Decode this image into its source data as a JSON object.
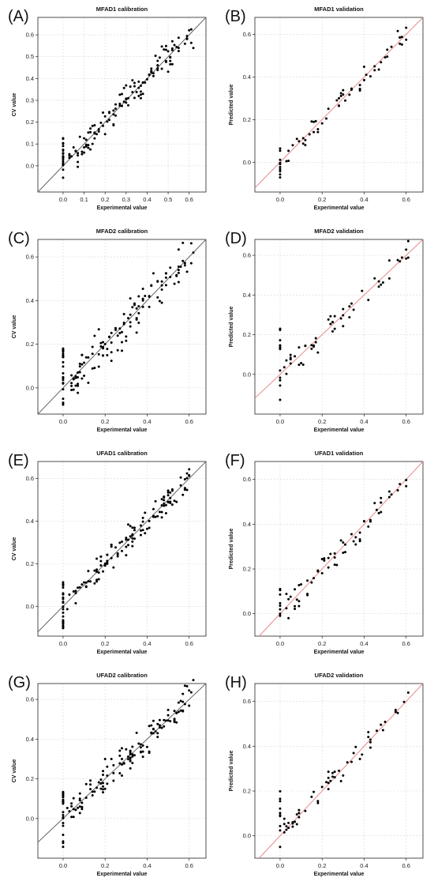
{
  "colors": {
    "calibration_line": "#666666",
    "validation_line": "#e88a8a",
    "points": "#000000",
    "grid": "#d8d8d8"
  },
  "charts": [
    {
      "panel": "(A)",
      "title": "MFAD1 calibration",
      "xlabel": "Experimental value",
      "ylabel": "CV value",
      "line": "calibration",
      "xlim": [
        -0.12,
        0.68
      ],
      "ylim": [
        -0.12,
        0.68
      ],
      "xticks": [
        "0.0",
        "0.1",
        "0.2",
        "0.3",
        "0.4",
        "0.5",
        "0.6"
      ],
      "yticks": [
        "0.0",
        "0.1",
        "0.2",
        "0.3",
        "0.4",
        "0.5",
        "0.6"
      ],
      "xtickvals": [
        0,
        0.1,
        0.2,
        0.3,
        0.4,
        0.5,
        0.6
      ],
      "ytickvals": [
        0,
        0.1,
        0.2,
        0.3,
        0.4,
        0.5,
        0.6
      ],
      "n": 150,
      "noise": 0.04,
      "zeros": 22,
      "zeroRange": [
        -0.06,
        0.13
      ]
    },
    {
      "panel": "(B)",
      "title": "MFAD1 validation",
      "xlabel": "Experimental value",
      "ylabel": "Predicted value",
      "line": "validation",
      "xlim": [
        -0.12,
        0.68
      ],
      "ylim": [
        -0.14,
        0.68
      ],
      "xticks": [
        "0.0",
        "0.2",
        "0.4",
        "0.6"
      ],
      "yticks": [
        "0.0",
        "0.2",
        "0.4",
        "0.6"
      ],
      "xtickvals": [
        0,
        0.2,
        0.4,
        0.6
      ],
      "ytickvals": [
        0,
        0.2,
        0.4,
        0.6
      ],
      "n": 65,
      "noise": 0.03,
      "zeros": 10,
      "zeroRange": [
        -0.1,
        0.07
      ]
    },
    {
      "panel": "(C)",
      "title": "MFAD2 calibration",
      "xlabel": "Experimental value",
      "ylabel": "CV value",
      "line": "calibration",
      "xlim": [
        -0.12,
        0.68
      ],
      "ylim": [
        -0.12,
        0.68
      ],
      "xticks": [
        "0.0",
        "0.2",
        "0.4",
        "0.6"
      ],
      "yticks": [
        "0.0",
        "0.2",
        "0.4",
        "0.6"
      ],
      "xtickvals": [
        0,
        0.2,
        0.4,
        0.6
      ],
      "ytickvals": [
        0,
        0.2,
        0.4,
        0.6
      ],
      "n": 150,
      "noise": 0.055,
      "zeros": 26,
      "zeroRange": [
        -0.08,
        0.18
      ]
    },
    {
      "panel": "(D)",
      "title": "MFAD2 validation",
      "xlabel": "Experimental value",
      "ylabel": "Predicted value",
      "line": "validation",
      "xlim": [
        -0.12,
        0.68
      ],
      "ylim": [
        -0.2,
        0.68
      ],
      "xticks": [
        "0.0",
        "0.2",
        "0.4",
        "0.6"
      ],
      "yticks": [
        "0.0",
        "0.2",
        "0.4",
        "0.6"
      ],
      "xtickvals": [
        0,
        0.2,
        0.4,
        0.6
      ],
      "ytickvals": [
        0,
        0.2,
        0.4,
        0.6
      ],
      "n": 65,
      "noise": 0.045,
      "zeros": 12,
      "zeroRange": [
        -0.15,
        0.25
      ]
    },
    {
      "panel": "(E)",
      "title": "UFAD1 calibration",
      "xlabel": "Experimental value",
      "ylabel": "CV value",
      "line": "calibration",
      "xlim": [
        -0.12,
        0.68
      ],
      "ylim": [
        -0.14,
        0.68
      ],
      "xticks": [
        "0.0",
        "0.2",
        "0.4",
        "0.6"
      ],
      "yticks": [
        "0.0",
        "0.2",
        "0.4",
        "0.6"
      ],
      "xtickvals": [
        0,
        0.2,
        0.4,
        0.6
      ],
      "ytickvals": [
        0,
        0.2,
        0.4,
        0.6
      ],
      "n": 150,
      "noise": 0.035,
      "zeros": 26,
      "zeroRange": [
        -0.11,
        0.12
      ]
    },
    {
      "panel": "(F)",
      "title": "UFAD1 validation",
      "xlabel": "Experimental value",
      "ylabel": "Predicted value",
      "line": "validation",
      "xlim": [
        -0.12,
        0.68
      ],
      "ylim": [
        -0.1,
        0.68
      ],
      "xticks": [
        "0.0",
        "0.2",
        "0.4",
        "0.6"
      ],
      "yticks": [
        "0.0",
        "0.2",
        "0.4",
        "0.6"
      ],
      "xtickvals": [
        0,
        0.2,
        0.4,
        0.6
      ],
      "ytickvals": [
        0,
        0.2,
        0.4,
        0.6
      ],
      "n": 70,
      "noise": 0.03,
      "zeros": 8,
      "zeroRange": [
        -0.03,
        0.12
      ]
    },
    {
      "panel": "(G)",
      "title": "UFAD2 calibration",
      "xlabel": "Experimental value",
      "ylabel": "CV value",
      "line": "calibration",
      "xlim": [
        -0.12,
        0.68
      ],
      "ylim": [
        -0.2,
        0.68
      ],
      "xticks": [
        "0.0",
        "0.2",
        "0.4",
        "0.6"
      ],
      "yticks": [
        "0.0",
        "0.2",
        "0.4",
        "0.6"
      ],
      "xtickvals": [
        0,
        0.2,
        0.4,
        0.6
      ],
      "ytickvals": [
        0,
        0.2,
        0.4,
        0.6
      ],
      "n": 150,
      "noise": 0.045,
      "zeros": 22,
      "zeroRange": [
        -0.16,
        0.15
      ]
    },
    {
      "panel": "(H)",
      "title": "UFAD2 validation",
      "xlabel": "Experimental value",
      "ylabel": "Predicted value",
      "line": "validation",
      "xlim": [
        -0.12,
        0.68
      ],
      "ylim": [
        -0.1,
        0.68
      ],
      "xticks": [
        "0.0",
        "0.2",
        "0.4",
        "0.6"
      ],
      "yticks": [
        "0.0",
        "0.2",
        "0.4",
        "0.6"
      ],
      "xtickvals": [
        0,
        0.2,
        0.4,
        0.6
      ],
      "ytickvals": [
        0,
        0.2,
        0.4,
        0.6
      ],
      "n": 65,
      "noise": 0.035,
      "zeros": 10,
      "zeroRange": [
        -0.07,
        0.2
      ]
    }
  ],
  "chart_data": [
    {
      "type": "scatter",
      "title": "MFAD1 calibration",
      "xlabel": "Experimental value",
      "ylabel": "CV value",
      "xlim": [
        -0.12,
        0.68
      ],
      "ylim": [
        -0.12,
        0.68
      ],
      "reference_line": "y=x"
    },
    {
      "type": "scatter",
      "title": "MFAD1 validation",
      "xlabel": "Experimental value",
      "ylabel": "Predicted value",
      "xlim": [
        -0.12,
        0.68
      ],
      "ylim": [
        -0.14,
        0.68
      ],
      "reference_line": "y=x"
    },
    {
      "type": "scatter",
      "title": "MFAD2 calibration",
      "xlabel": "Experimental value",
      "ylabel": "CV value",
      "xlim": [
        -0.12,
        0.68
      ],
      "ylim": [
        -0.12,
        0.68
      ],
      "reference_line": "y=x"
    },
    {
      "type": "scatter",
      "title": "MFAD2 validation",
      "xlabel": "Experimental value",
      "ylabel": "Predicted value",
      "xlim": [
        -0.12,
        0.68
      ],
      "ylim": [
        -0.2,
        0.68
      ],
      "reference_line": "y=x"
    },
    {
      "type": "scatter",
      "title": "UFAD1 calibration",
      "xlabel": "Experimental value",
      "ylabel": "CV value",
      "xlim": [
        -0.12,
        0.68
      ],
      "ylim": [
        -0.14,
        0.68
      ],
      "reference_line": "y=x"
    },
    {
      "type": "scatter",
      "title": "UFAD1 validation",
      "xlabel": "Experimental value",
      "ylabel": "Predicted value",
      "xlim": [
        -0.12,
        0.68
      ],
      "ylim": [
        -0.1,
        0.68
      ],
      "reference_line": "y=x"
    },
    {
      "type": "scatter",
      "title": "UFAD2 calibration",
      "xlabel": "Experimental value",
      "ylabel": "CV value",
      "xlim": [
        -0.12,
        0.68
      ],
      "ylim": [
        -0.2,
        0.68
      ],
      "reference_line": "y=x"
    },
    {
      "type": "scatter",
      "title": "UFAD2 validation",
      "xlabel": "Experimental value",
      "ylabel": "Predicted value",
      "xlim": [
        -0.12,
        0.68
      ],
      "ylim": [
        -0.1,
        0.68
      ],
      "reference_line": "y=x"
    }
  ]
}
